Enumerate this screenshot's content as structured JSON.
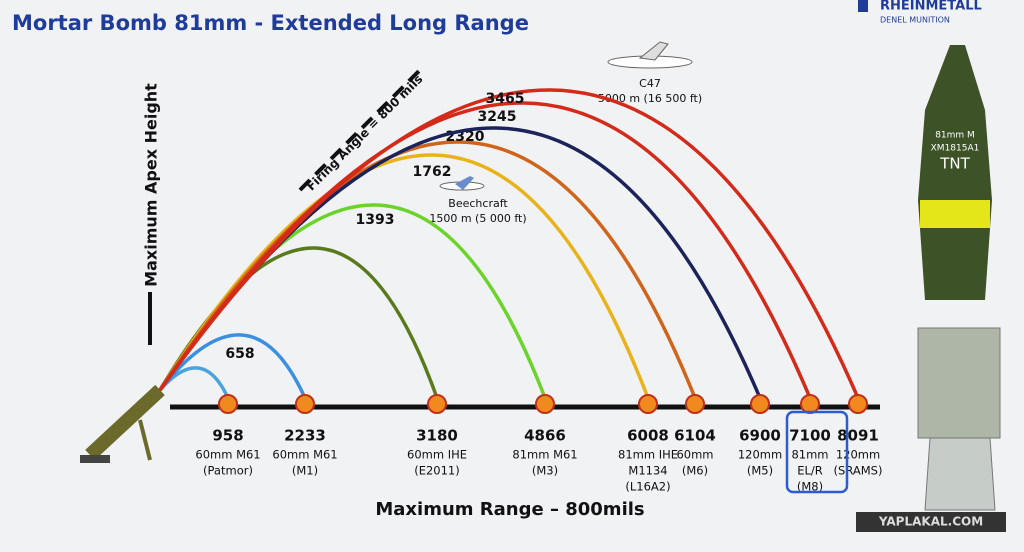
{
  "title": "Mortar Bomb 81mm - Extended Long Range",
  "brand": {
    "name": "RHEINMETALL",
    "sub": "DENEL MUNITION"
  },
  "y_axis_label": "Maximum Apex Height",
  "x_axis_label": "Maximum Range – 800mils",
  "firing_angle": "Firing Angle = 800 mils",
  "aircraft": [
    {
      "name": "C47",
      "altitude": "5000 m (16 500 ft)"
    },
    {
      "name": "Beechcraft",
      "altitude": "1500 m (5 000 ft)"
    }
  ],
  "rounds": [
    {
      "range": 958,
      "name": [
        "60mm M61",
        "(Patmor)"
      ]
    },
    {
      "range": 2233,
      "name": [
        "60mm M61",
        "(M1)"
      ],
      "apex": 658
    },
    {
      "range": 3180,
      "name": [
        "60mm IHE",
        "(E2011)"
      ]
    },
    {
      "range": 4866,
      "name": [
        "81mm M61",
        "(M3)"
      ],
      "apex": 1393
    },
    {
      "range": 6008,
      "name": [
        "81mm IHE",
        "M1134",
        "(L16A2)"
      ],
      "apex": 1762
    },
    {
      "range": 6104,
      "name": [
        "60mm",
        "(M6)"
      ],
      "apex": 2320
    },
    {
      "range": 6900,
      "name": [
        "120mm",
        "(M5)"
      ]
    },
    {
      "range": 7100,
      "name": [
        "81mm",
        "EL/R",
        "(M8)"
      ],
      "apex": 3245
    },
    {
      "range": 8091,
      "name": [
        "120mm",
        "(SRAMS)"
      ],
      "apex": 3465
    }
  ],
  "shell": {
    "lines": [
      "81mm M",
      "XM1815A1",
      "TNT"
    ]
  },
  "watermark": "YAPLAKAL.COM"
}
